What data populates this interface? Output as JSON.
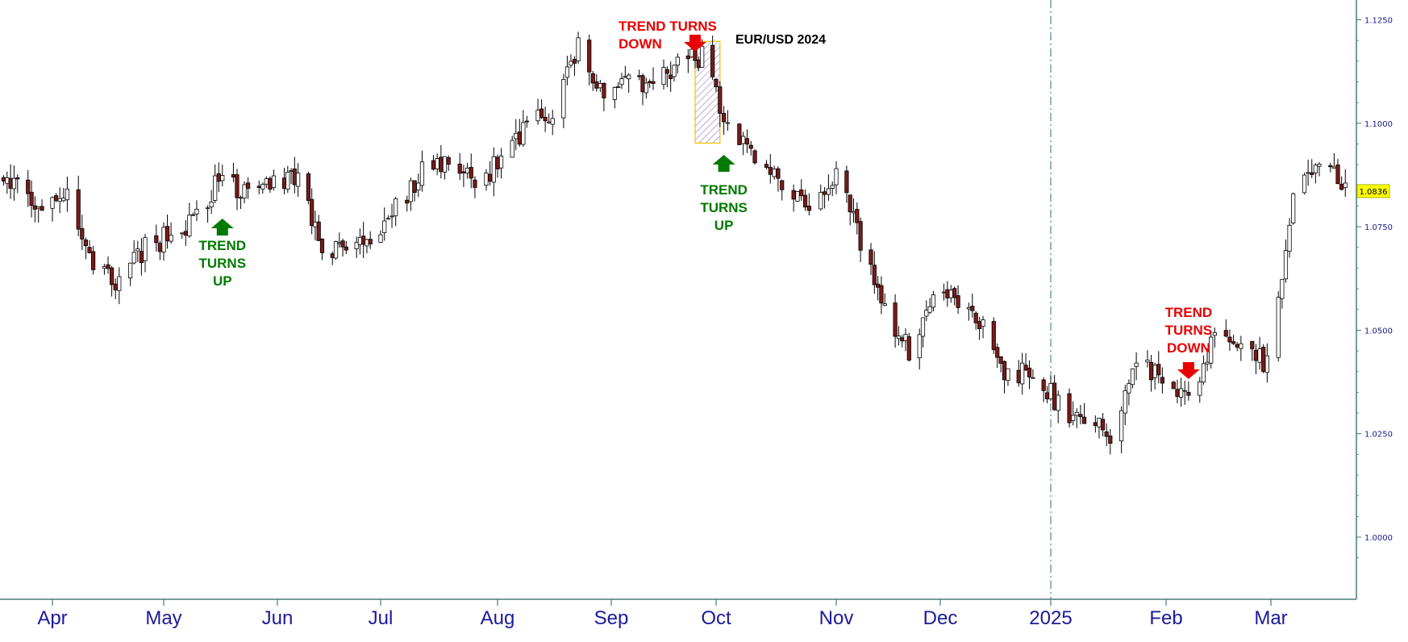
{
  "chart_data": {
    "type": "candlestick",
    "title": "EUR/USD 2024",
    "y_ticks": [
      "1.0000",
      "1.0250",
      "1.0500",
      "1.0750",
      "1.1000",
      "1.1250"
    ],
    "ylim": [
      0.9935,
      1.1296
    ],
    "x_ticks": [
      "Apr",
      "May",
      "Jun",
      "Jul",
      "Aug",
      "Sep",
      "Oct",
      "Nov",
      "Dec",
      "2025",
      "Feb",
      "Mar"
    ],
    "last_price": "1.0836",
    "year_divider": "2025",
    "close_path": [
      [
        "Mar 15",
        1.09
      ],
      [
        "Mar 22",
        1.084
      ],
      [
        "Mar 29",
        1.079
      ],
      [
        "Apr 5",
        1.083
      ],
      [
        "Apr 12",
        1.065
      ],
      [
        "Apr 18",
        1.062
      ],
      [
        "Apr 26",
        1.07
      ],
      [
        "May 3",
        1.073
      ],
      [
        "May 10",
        1.077
      ],
      [
        "May 16",
        1.087
      ],
      [
        "May 24",
        1.083
      ],
      [
        "May 31",
        1.085
      ],
      [
        "Jun 7",
        1.088
      ],
      [
        "Jun 14",
        1.07
      ],
      [
        "Jun 21",
        1.069
      ],
      [
        "Jun 28",
        1.071
      ],
      [
        "Jul 5",
        1.08
      ],
      [
        "Jul 12",
        1.088
      ],
      [
        "Jul 19",
        1.09
      ],
      [
        "Jul 26",
        1.085
      ],
      [
        "Aug 2",
        1.091
      ],
      [
        "Aug 9",
        1.099
      ],
      [
        "Aug 16",
        1.103
      ],
      [
        "Aug 23",
        1.118
      ],
      [
        "Aug 30",
        1.105
      ],
      [
        "Sep 6",
        1.11
      ],
      [
        "Sep 13",
        1.108
      ],
      [
        "Sep 20",
        1.115
      ],
      [
        "Sep 27",
        1.116
      ],
      [
        "Oct 4",
        1.1
      ],
      [
        "Oct 11",
        1.093
      ],
      [
        "Oct 18",
        1.086
      ],
      [
        "Oct 25",
        1.081
      ],
      [
        "Nov 1",
        1.087
      ],
      [
        "Nov 8",
        1.072
      ],
      [
        "Nov 15",
        1.054
      ],
      [
        "Nov 22",
        1.045
      ],
      [
        "Nov 29",
        1.056
      ],
      [
        "Dec 6",
        1.058
      ],
      [
        "Dec 13",
        1.05
      ],
      [
        "Dec 20",
        1.038
      ],
      [
        "Dec 27",
        1.041
      ],
      [
        "Jan 3",
        1.032
      ],
      [
        "Jan 10",
        1.028
      ],
      [
        "Jan 17",
        1.025
      ],
      [
        "Jan 24",
        1.042
      ],
      [
        "Jan 31",
        1.038
      ],
      [
        "Feb 7",
        1.032
      ],
      [
        "Feb 14",
        1.048
      ],
      [
        "Feb 21",
        1.046
      ],
      [
        "Feb 28",
        1.042
      ],
      [
        "Mar 7",
        1.082
      ],
      [
        "Mar 14",
        1.09
      ],
      [
        "Mar 21",
        1.086
      ],
      [
        "Mar 26",
        1.081
      ]
    ],
    "annotations": [
      {
        "label": "TREND TURNS UP",
        "lines": [
          "TREND",
          "TURNS",
          "UP"
        ],
        "date": "May 17 2024",
        "direction": "up",
        "color": "#007a00"
      },
      {
        "label": "TREND TURNS DOWN",
        "lines": [
          "TREND TURNS",
          "DOWN"
        ],
        "date": "Sep 25 2024",
        "direction": "down",
        "color": "#e80000"
      },
      {
        "label": "TREND TURNS UP",
        "lines": [
          "TREND",
          "TURNS",
          "UP"
        ],
        "date": "Oct 3 2024",
        "direction": "up",
        "color": "#007a00"
      },
      {
        "label": "TREND TURNS DOWN",
        "lines": [
          "TREND",
          "TURNS",
          "DOWN"
        ],
        "date": "Feb 7 2025",
        "direction": "down",
        "color": "#e80000"
      }
    ],
    "highlight": {
      "from": "Sep 25 2024",
      "to": "Oct 2 2024",
      "high": 1.1198,
      "low": 1.0952
    },
    "grid": false,
    "colors": {
      "up": "#ffffff",
      "down": "#7a1a1a",
      "wick": "#000000",
      "axis": "#4a7a7a",
      "tick_text": "#1a1a9a",
      "price_tag": "#ffff00"
    }
  }
}
